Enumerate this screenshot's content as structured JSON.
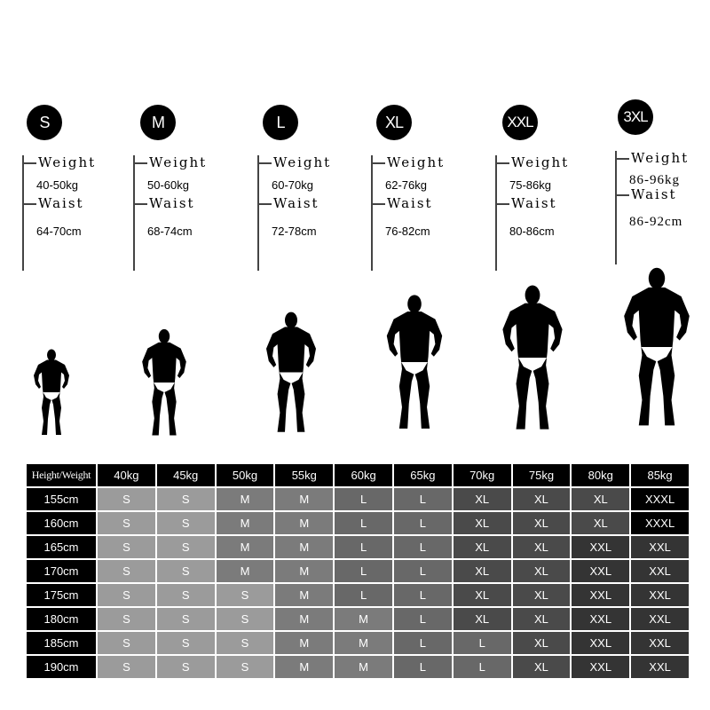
{
  "colors": {
    "S": "#9b9b9b",
    "M": "#7b7b7b",
    "L": "#686868",
    "XL": "#4a4a4a",
    "XXL": "#343434",
    "XXXL": "#000000"
  },
  "sizes": [
    {
      "badge": "S",
      "weight_label": "Weight",
      "weight": "40-50kg",
      "waist_label": "Waist",
      "waist": "64-70cm"
    },
    {
      "badge": "M",
      "weight_label": "Weight",
      "weight": "50-60kg",
      "waist_label": "Waist",
      "waist": "68-74cm"
    },
    {
      "badge": "L",
      "weight_label": "Weight",
      "weight": "60-70kg",
      "waist_label": "Waist",
      "waist": "72-78cm"
    },
    {
      "badge": "XL",
      "weight_label": "Weight",
      "weight": "62-76kg",
      "waist_label": "Waist",
      "waist": "76-82cm"
    },
    {
      "badge": "XXL",
      "weight_label": "Weight",
      "weight": "75-86kg",
      "waist_label": "Waist",
      "waist": "80-86cm"
    },
    {
      "badge": "3XL",
      "weight_label": "Weight",
      "weight": "86-96kg",
      "waist_label": "Waist",
      "waist": "86-92cm"
    }
  ],
  "table": {
    "corner": "Height/Weight",
    "columns": [
      "40kg",
      "45kg",
      "50kg",
      "55kg",
      "60kg",
      "65kg",
      "70kg",
      "75kg",
      "80kg",
      "85kg"
    ],
    "rows": [
      {
        "height": "155cm",
        "cells": [
          "S",
          "S",
          "M",
          "M",
          "L",
          "L",
          "XL",
          "XL",
          "XL",
          "XXXL"
        ]
      },
      {
        "height": "160cm",
        "cells": [
          "S",
          "S",
          "M",
          "M",
          "L",
          "L",
          "XL",
          "XL",
          "XL",
          "XXXL"
        ]
      },
      {
        "height": "165cm",
        "cells": [
          "S",
          "S",
          "M",
          "M",
          "L",
          "L",
          "XL",
          "XL",
          "XXL",
          "XXL"
        ]
      },
      {
        "height": "170cm",
        "cells": [
          "S",
          "S",
          "M",
          "M",
          "L",
          "L",
          "XL",
          "XL",
          "XXL",
          "XXL"
        ]
      },
      {
        "height": "175cm",
        "cells": [
          "S",
          "S",
          "S",
          "M",
          "L",
          "L",
          "XL",
          "XL",
          "XXL",
          "XXL"
        ]
      },
      {
        "height": "180cm",
        "cells": [
          "S",
          "S",
          "S",
          "M",
          "M",
          "L",
          "XL",
          "XL",
          "XXL",
          "XXL"
        ]
      },
      {
        "height": "185cm",
        "cells": [
          "S",
          "S",
          "S",
          "M",
          "M",
          "L",
          "L",
          "XL",
          "XXL",
          "XXL"
        ]
      },
      {
        "height": "190cm",
        "cells": [
          "S",
          "S",
          "S",
          "M",
          "M",
          "L",
          "L",
          "XL",
          "XXL",
          "XXL"
        ]
      }
    ]
  }
}
